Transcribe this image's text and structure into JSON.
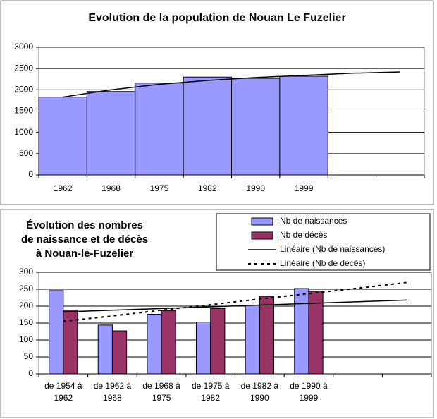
{
  "chart_data": [
    {
      "type": "bar",
      "title": "Evolution de la population de Nouan Le Fuzelier",
      "categories": [
        "1962",
        "1968",
        "1975",
        "1982",
        "1990",
        "1999",
        null,
        null
      ],
      "series": [
        {
          "type": "bar",
          "color": "#9999ff",
          "values": [
            1830,
            1960,
            2160,
            2300,
            2270,
            2320,
            null,
            null
          ]
        },
        {
          "type": "line",
          "color": "#000000",
          "values": [
            1830,
            2000,
            2130,
            2220,
            2290,
            2340,
            2390,
            2420
          ]
        }
      ],
      "ylim": [
        0,
        3000
      ],
      "yticks": [
        0,
        500,
        1000,
        1500,
        2000,
        2500,
        3000
      ],
      "grid": true
    },
    {
      "type": "bar",
      "title": [
        "Évolution des nombres",
        "de naissance et de décès",
        "à Nouan-le-Fuzelier"
      ],
      "categories": [
        [
          "de 1954 à",
          "1962"
        ],
        [
          "de 1962 à",
          "1968"
        ],
        [
          "de 1968 à",
          "1975"
        ],
        [
          "de 1975 à",
          "1982"
        ],
        [
          "de 1982 à",
          "1990"
        ],
        [
          "de 1990 à",
          "1999"
        ],
        null,
        null
      ],
      "series": [
        {
          "type": "bar",
          "name": "Nb de naissances",
          "color": "#9999ff",
          "values": [
            246,
            144,
            176,
            153,
            203,
            252,
            null,
            null
          ]
        },
        {
          "type": "bar",
          "name": "Nb de décès",
          "color": "#993366",
          "values": [
            188,
            127,
            187,
            193,
            229,
            244,
            null,
            null
          ]
        },
        {
          "type": "line",
          "name": "Linéaire (Nb de naissances)",
          "color": "#000000",
          "values": [
            183,
            188,
            193,
            198,
            203,
            208,
            213,
            218
          ]
        },
        {
          "type": "line",
          "name": "Linéaire (Nb de décès)",
          "color": "#000000",
          "dash": true,
          "values": [
            155,
            171,
            188,
            204,
            221,
            237,
            253,
            270
          ]
        }
      ],
      "ylim": [
        0,
        300
      ],
      "yticks": [
        0,
        50,
        100,
        150,
        200,
        250,
        300
      ],
      "grid": true,
      "legend": "top-right"
    }
  ]
}
